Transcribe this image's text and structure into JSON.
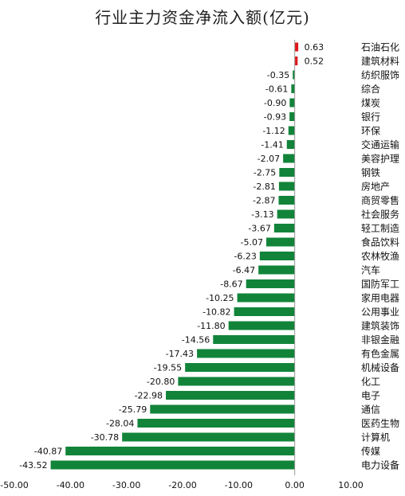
{
  "chart_data": {
    "type": "bar",
    "orientation": "horizontal",
    "title": "行业主力资金净流入额(亿元)",
    "xlabel": "",
    "ylabel": "",
    "xlim": [
      -50,
      10
    ],
    "ticks": [
      "-50.00",
      "-40.00",
      "-30.00",
      "-20.00",
      "-10.00",
      "0.00",
      "10.00"
    ],
    "categories": [
      "石油石化",
      "建筑材料",
      "纺织服饰",
      "综合",
      "煤炭",
      "银行",
      "环保",
      "交通运输",
      "美容护理",
      "钢铁",
      "房地产",
      "商贸零售",
      "社会服务",
      "轻工制造",
      "食品饮料",
      "农林牧渔",
      "汽车",
      "国防军工",
      "家用电器",
      "公用事业",
      "建筑装饰",
      "非银金融",
      "有色金属",
      "机械设备",
      "化工",
      "电子",
      "通信",
      "医药生物",
      "计算机",
      "传媒",
      "电力设备"
    ],
    "values": [
      0.63,
      0.52,
      -0.35,
      -0.61,
      -0.9,
      -0.93,
      -1.12,
      -1.41,
      -2.07,
      -2.75,
      -2.81,
      -2.87,
      -3.13,
      -3.67,
      -5.07,
      -6.23,
      -6.47,
      -8.67,
      -10.25,
      -10.82,
      -11.8,
      -14.56,
      -17.43,
      -19.55,
      -20.8,
      -22.98,
      -25.79,
      -28.04,
      -30.78,
      -40.87,
      -43.52
    ],
    "value_labels": [
      "0.63",
      "0.52",
      "-0.35",
      "-0.61",
      "-0.90",
      "-0.93",
      "-1.12",
      "-1.41",
      "-2.07",
      "-2.75",
      "-2.81",
      "-2.87",
      "-3.13",
      "-3.67",
      "-5.07",
      "-6.23",
      "-6.47",
      "-8.67",
      "-10.25",
      "-10.82",
      "-11.80",
      "-14.56",
      "-17.43",
      "-19.55",
      "-20.80",
      "-22.98",
      "-25.79",
      "-28.04",
      "-30.78",
      "-40.87",
      "-43.52"
    ],
    "colors": {
      "positive": "#e0161a",
      "negative": "#12843a"
    },
    "grid": false,
    "legend": "none"
  }
}
